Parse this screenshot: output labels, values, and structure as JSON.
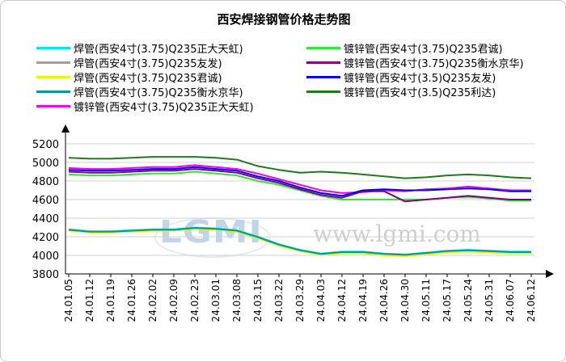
{
  "chart_data": {
    "type": "line",
    "title": "西安焊接钢管价格走势图",
    "ylim": [
      3800,
      5200
    ],
    "yticks": [
      3800,
      4000,
      4200,
      4400,
      4600,
      4800,
      5000,
      5200
    ],
    "x": [
      "24.01.05",
      "24.01.12",
      "24.01.19",
      "24.01.26",
      "24.02.02",
      "24.02.09",
      "24.02.23",
      "24.03.01",
      "24.03.08",
      "24.03.15",
      "24.03.22",
      "24.03.29",
      "24.04.03",
      "24.04.12",
      "24.04.19",
      "24.04.26",
      "24.04.30",
      "24.05.11",
      "24.05.17",
      "24.05.24",
      "24.05.31",
      "24.06.07",
      "24.06.12"
    ],
    "grid": true,
    "legend_position": "top",
    "series": [
      {
        "name": "焊管(西安4寸(3.75)Q235正大天虹)",
        "color": "#00e5ee",
        "values": [
          4280,
          4260,
          4260,
          4270,
          4280,
          4280,
          4300,
          4290,
          4270,
          4200,
          4120,
          4060,
          4020,
          4040,
          4040,
          4020,
          4010,
          4030,
          4050,
          4060,
          4050,
          4040,
          4040
        ]
      },
      {
        "name": "焊管(西安4寸(3.75)Q235友发)",
        "color": "#a0a0a0",
        "values": [
          4270,
          4250,
          4250,
          4260,
          4270,
          4270,
          4290,
          4280,
          4260,
          4190,
          4110,
          4050,
          4010,
          4030,
          4030,
          4010,
          4000,
          4020,
          4040,
          4050,
          4040,
          4030,
          4030
        ]
      },
      {
        "name": "焊管(西安4寸(3.75)Q235君诚)",
        "color": "#f2f200",
        "values": [
          4265,
          4245,
          4245,
          4255,
          4265,
          4265,
          4285,
          4275,
          4255,
          4185,
          4105,
          4045,
          4005,
          4020,
          4020,
          4000,
          3990,
          4010,
          4030,
          4040,
          4030,
          4020,
          4020
        ]
      },
      {
        "name": "焊管(西安4寸(3.75)Q235衡水京华)",
        "color": "#009a9a",
        "values": [
          4275,
          4255,
          4255,
          4265,
          4275,
          4275,
          4295,
          4285,
          4265,
          4195,
          4115,
          4055,
          4015,
          4035,
          4035,
          4015,
          4005,
          4025,
          4045,
          4055,
          4045,
          4035,
          4035
        ]
      },
      {
        "name": "镀锌管(西安4寸(3.75)Q235正大天虹)",
        "color": "#ee00ee",
        "values": [
          4940,
          4930,
          4930,
          4940,
          4950,
          4950,
          4970,
          4950,
          4930,
          4880,
          4820,
          4760,
          4700,
          4670,
          4680,
          4700,
          4690,
          4710,
          4720,
          4740,
          4720,
          4700,
          4700
        ]
      },
      {
        "name": "镀锌管(西安4寸(3.75)Q235君诚)",
        "color": "#33e633",
        "values": [
          4870,
          4860,
          4860,
          4870,
          4880,
          4880,
          4900,
          4880,
          4860,
          4800,
          4760,
          4700,
          4640,
          4600,
          4600,
          4600,
          4600,
          4600,
          4620,
          4630,
          4610,
          4590,
          4590
        ]
      },
      {
        "name": "镀锌管(西安4寸(3.75)Q235衡水京华)",
        "color": "#800080",
        "values": [
          4900,
          4890,
          4890,
          4900,
          4910,
          4910,
          4930,
          4910,
          4890,
          4830,
          4780,
          4710,
          4650,
          4620,
          4690,
          4690,
          4580,
          4600,
          4620,
          4640,
          4620,
          4600,
          4600
        ]
      },
      {
        "name": "镀锌管(西安4寸(3.5)Q235友发)",
        "color": "#0000ee",
        "values": [
          4920,
          4910,
          4910,
          4920,
          4930,
          4930,
          4950,
          4930,
          4910,
          4850,
          4800,
          4730,
          4670,
          4640,
          4700,
          4710,
          4700,
          4700,
          4710,
          4720,
          4710,
          4690,
          4690
        ]
      },
      {
        "name": "镀锌管(西安4寸(3.5)Q235利达)",
        "color": "#1f7a1f",
        "values": [
          5050,
          5040,
          5040,
          5050,
          5060,
          5060,
          5060,
          5050,
          5030,
          4960,
          4920,
          4890,
          4900,
          4890,
          4870,
          4850,
          4830,
          4840,
          4860,
          4870,
          4860,
          4840,
          4830
        ]
      }
    ],
    "legend_order": [
      0,
      5,
      1,
      6,
      2,
      7,
      3,
      8,
      4
    ]
  },
  "watermark": {
    "logo_text": "LGMI",
    "url_text": "www.lgmi.com"
  }
}
